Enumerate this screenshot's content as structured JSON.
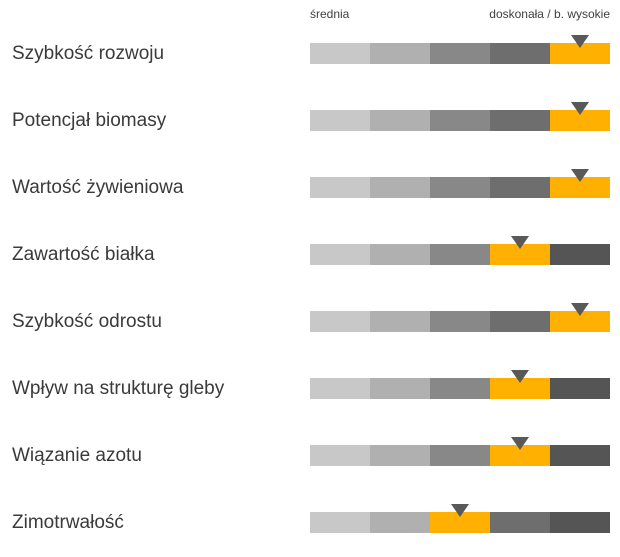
{
  "scale": {
    "low_label": "średnia",
    "high_label": "doskonała / b. wysokie"
  },
  "colors": {
    "segments": [
      "#c8c8c8",
      "#b0b0b0",
      "#888888",
      "#6e6e6e",
      "#555555"
    ],
    "highlight": "#ffb000",
    "marker": "#595959"
  },
  "traits": [
    {
      "label": "Szybkość rozwoju",
      "level": 5
    },
    {
      "label": "Potencjał biomasy",
      "level": 5
    },
    {
      "label": "Wartość żywieniowa",
      "level": 5
    },
    {
      "label": "Zawartość białka",
      "level": 4
    },
    {
      "label": "Szybkość odrostu",
      "level": 5
    },
    {
      "label": "Wpływ na strukturę gleby",
      "level": 4
    },
    {
      "label": "Wiązanie azotu",
      "level": 4
    },
    {
      "label": "Zimotrwałość",
      "level": 3
    }
  ]
}
